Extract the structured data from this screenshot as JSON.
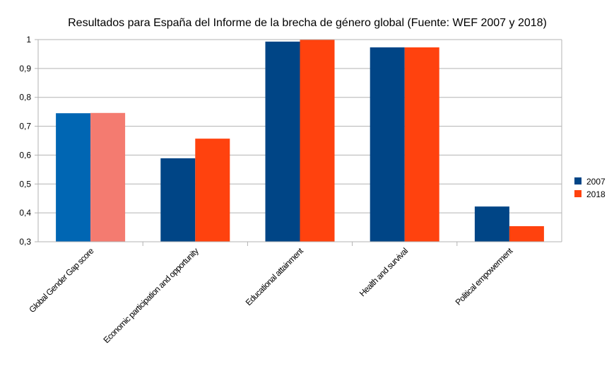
{
  "chart_data": {
    "type": "bar",
    "title": "Resultados  para España del  Informe de la brecha de género global (Fuente:  WEF 2007  y 2018)",
    "xlabel": "",
    "ylabel": "",
    "ylim": [
      0.3,
      1
    ],
    "yticks": [
      0.3,
      0.4,
      0.5,
      0.6,
      0.7,
      0.8,
      0.9,
      1
    ],
    "ytick_labels": [
      "0,3",
      "0,4",
      "0,5",
      "0,6",
      "0,7",
      "0,8",
      "0,9",
      "1"
    ],
    "grid": true,
    "legend_position": "right",
    "categories": [
      "Global Gender Gap score",
      "Economic participation and opportunity",
      "Educational attainment",
      "Health and survival",
      "Political empowerment"
    ],
    "series": [
      {
        "name": "2007",
        "color": "#004586",
        "values": [
          0.745,
          0.589,
          0.993,
          0.973,
          0.422
        ]
      },
      {
        "name": "2018",
        "color": "#ff420e",
        "values": [
          0.746,
          0.657,
          0.999,
          0.973,
          0.354
        ]
      }
    ],
    "first_category_colors": [
      "#0066b3",
      "#f47b70"
    ]
  }
}
